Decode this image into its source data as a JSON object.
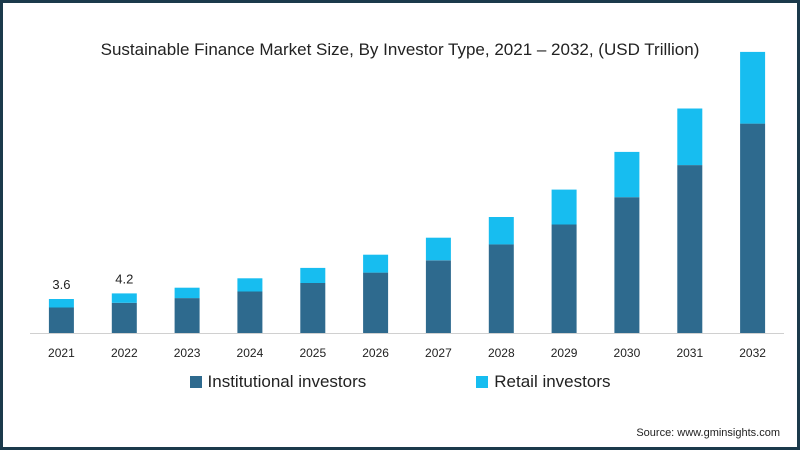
{
  "chart_data": {
    "type": "bar",
    "stacked": true,
    "title": "Sustainable Finance Market Size, By Investor Type, 2021 – 2032, (USD Trillion)",
    "xlabel": "",
    "ylabel": "",
    "ylim": [
      0,
      30
    ],
    "grid": false,
    "legend_position": "bottom",
    "categories": [
      "2021",
      "2022",
      "2023",
      "2024",
      "2025",
      "2026",
      "2027",
      "2028",
      "2029",
      "2030",
      "2031",
      "2032"
    ],
    "series": [
      {
        "name": "Institutional investors",
        "color": "#2e6a8e",
        "values": [
          2.7,
          3.2,
          3.7,
          4.4,
          5.3,
          6.4,
          7.7,
          9.4,
          11.5,
          14.4,
          17.8,
          22.2
        ]
      },
      {
        "name": "Retail investors",
        "color": "#17bdf0",
        "values": [
          0.9,
          1.0,
          1.1,
          1.4,
          1.6,
          1.9,
          2.4,
          2.9,
          3.7,
          4.8,
          6.0,
          7.6
        ]
      }
    ],
    "data_labels": [
      {
        "category": "2021",
        "text": "3.6"
      },
      {
        "category": "2022",
        "text": "4.2"
      }
    ]
  },
  "source": "Source: www.gminsights.com"
}
